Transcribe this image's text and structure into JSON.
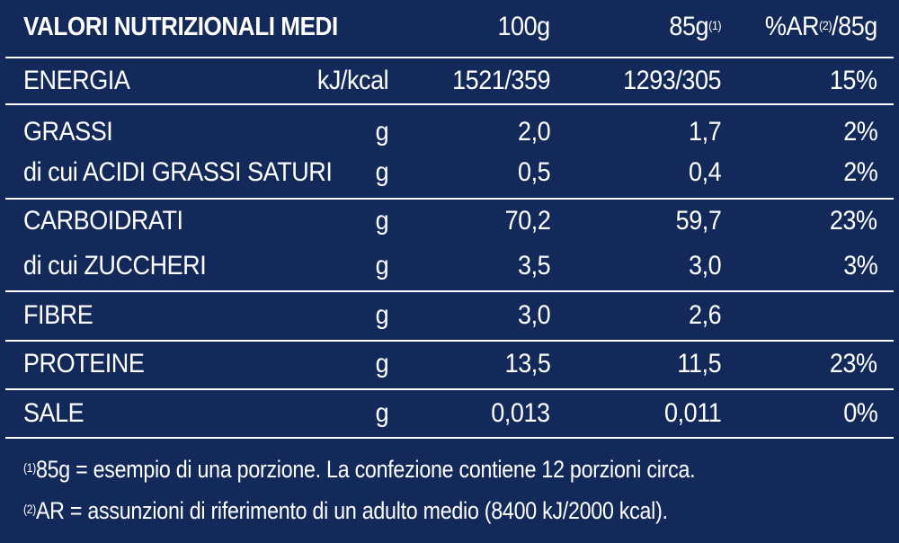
{
  "header": {
    "title": "VALORI NUTRIZIONALI MEDI",
    "col_100g": "100g",
    "col_85g": "85g",
    "col_85g_note": "(1)",
    "col_ar_prefix": "%AR",
    "col_ar_note": "(2)",
    "col_ar_suffix": "/85g"
  },
  "rows": [
    {
      "name": "ENERGIA",
      "unit": "kJ/kcal",
      "per100": "1521/359",
      "per85": "1293/305",
      "ar": "15%"
    },
    {
      "name": "GRASSI",
      "unit": "g",
      "per100": "2,0",
      "per85": "1,7",
      "ar": "2%"
    },
    {
      "name": "di cui ACIDI GRASSI SATURI",
      "unit": "g",
      "per100": "0,5",
      "per85": "0,4",
      "ar": "2%"
    },
    {
      "name": "CARBOIDRATI",
      "unit": "g",
      "per100": "70,2",
      "per85": "59,7",
      "ar": "23%"
    },
    {
      "name": "di cui ZUCCHERI",
      "unit": "g",
      "per100": "3,5",
      "per85": "3,0",
      "ar": "3%"
    },
    {
      "name": "FIBRE",
      "unit": "g",
      "per100": "3,0",
      "per85": "2,6",
      "ar": ""
    },
    {
      "name": "PROTEINE",
      "unit": "g",
      "per100": "13,5",
      "per85": "11,5",
      "ar": "23%"
    },
    {
      "name": "SALE",
      "unit": "g",
      "per100": "0,013",
      "per85": "0,011",
      "ar": "0%"
    }
  ],
  "notes": [
    {
      "mark": "(1)",
      "text": "85g = esempio di una porzione. La confezione contiene 12 porzioni circa."
    },
    {
      "mark": "(2)",
      "text": "AR = assunzioni di riferimento di un adulto medio (8400 kJ/2000 kcal)."
    }
  ],
  "colors": {
    "background": "#13295a",
    "text": "#ffffff"
  }
}
